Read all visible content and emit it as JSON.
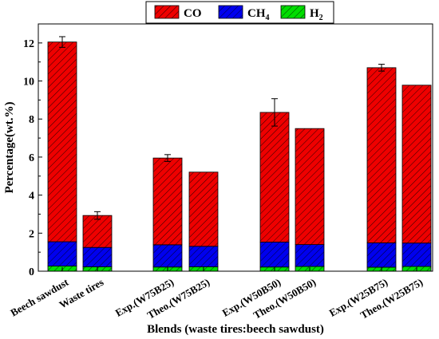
{
  "chart_data": {
    "type": "bar",
    "stacked": true,
    "xlabel": "Blends (waste tires:beech sawdust)",
    "ylabel": "Percentage(wt.%)",
    "ylim": [
      0,
      13
    ],
    "yticks": [
      0,
      2,
      4,
      6,
      8,
      10,
      12
    ],
    "legend_position": "top-center",
    "categories": [
      "Beech sawdust",
      "Waste tires",
      "Exp.(W75B25)",
      "Theo.(W75B25)",
      "Exp.(W50B50)",
      "Theo.(W50B50)",
      "Exp.(W25B75)",
      "Theo.(W25B75)"
    ],
    "series": [
      {
        "key": "h2",
        "name": "H",
        "name_sub": "2",
        "color": "#00dd00",
        "values": [
          0.27,
          0.23,
          0.22,
          0.23,
          0.22,
          0.25,
          0.21,
          0.25
        ]
      },
      {
        "key": "ch4",
        "name": "CH",
        "name_sub": "4",
        "color": "#0000ee",
        "values": [
          1.28,
          1.02,
          1.17,
          1.08,
          1.31,
          1.15,
          1.28,
          1.23
        ]
      },
      {
        "key": "co",
        "name": "CO",
        "name_sub": "",
        "color": "#ee0000",
        "values": [
          10.5,
          1.68,
          4.56,
          3.9,
          6.82,
          6.1,
          9.21,
          8.3
        ]
      }
    ],
    "legend_order": [
      "co",
      "ch4",
      "h2"
    ],
    "error_bars": [
      0.28,
      0.2,
      0.18,
      null,
      0.72,
      null,
      0.18,
      null
    ],
    "grid": false
  }
}
